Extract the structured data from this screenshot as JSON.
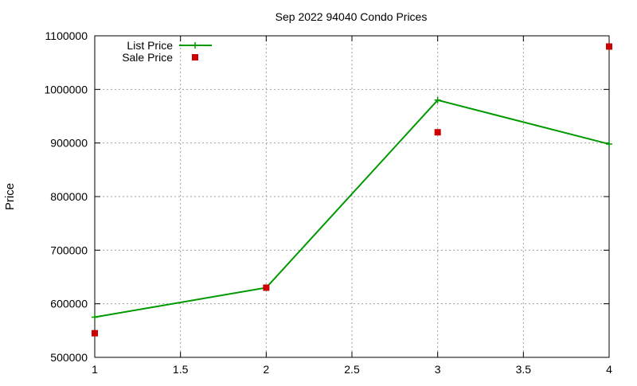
{
  "chart_data": {
    "type": "line",
    "title": "Sep 2022 94040 Condo Prices",
    "xlabel": "",
    "ylabel": "Price",
    "xlim": [
      1,
      4
    ],
    "ylim": [
      500000,
      1100000
    ],
    "xticks": [
      "1",
      "1.5",
      "2",
      "2.5",
      "3",
      "3.5",
      "4"
    ],
    "yticks": [
      "500000",
      "600000",
      "700000",
      "800000",
      "900000",
      "1000000",
      "1100000"
    ],
    "grid": true,
    "legend_position": "top-left",
    "series": [
      {
        "name": "List Price",
        "style": "line-with-plus-markers",
        "color": "#009900",
        "x": [
          1,
          2,
          3,
          4
        ],
        "y": [
          575000,
          630000,
          980000,
          898000
        ]
      },
      {
        "name": "Sale Price",
        "style": "square-markers",
        "color": "#cc0000",
        "x": [
          1,
          2,
          3,
          4
        ],
        "y": [
          545000,
          630000,
          920000,
          1080000
        ]
      }
    ]
  }
}
